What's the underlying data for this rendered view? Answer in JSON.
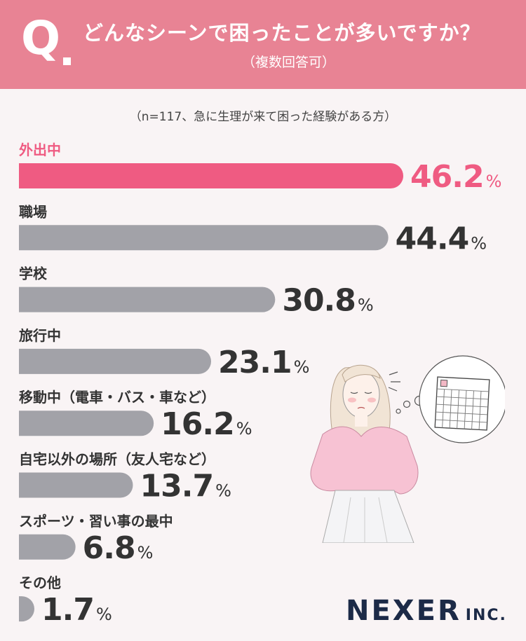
{
  "header": {
    "q_letter": "Q",
    "title": "どんなシーンで困ったことが多いですか？",
    "subtitle": "（複数回答可）"
  },
  "sample_note": "（n=117、急に生理が来て困った経験がある方）",
  "logo": {
    "main": "NEXER",
    "suffix": "INC."
  },
  "colors": {
    "header_bg": "#e88394",
    "highlight": "#ef5b82",
    "bar": "#a2a2a8",
    "text": "#333333"
  },
  "chart_data": {
    "type": "bar",
    "orientation": "horizontal",
    "categories": [
      "外出中",
      "職場",
      "学校",
      "旅行中",
      "移動中（電車・バス・車など）",
      "自宅以外の場所（友人宅など）",
      "スポーツ・習い事の最中",
      "その他"
    ],
    "values": [
      46.2,
      44.4,
      30.8,
      23.1,
      16.2,
      13.7,
      6.8,
      1.7
    ],
    "value_labels": [
      "46.2",
      "44.4",
      "30.8",
      "23.1",
      "16.2",
      "13.7",
      "6.8",
      "1.7"
    ],
    "unit": "%",
    "highlight_index": 0
  }
}
